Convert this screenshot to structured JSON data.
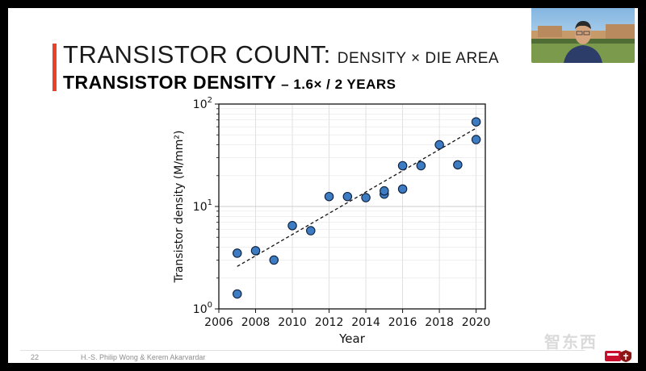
{
  "slide": {
    "title_main": "TRANSISTOR COUNT:",
    "title_sub": "DENSITY × DIE AREA",
    "heading_main": "TRANSISTOR DENSITY",
    "heading_sub": "– 1.6× / 2 YEARS"
  },
  "footer": {
    "page_number": "22",
    "authors": "H.-S. Philip Wong & Kerem Akarvardar"
  },
  "colors": {
    "accent": "#e8422b",
    "marker_fill": "#3d7bc2",
    "marker_edge": "#0d1f3a"
  },
  "chart_data": {
    "type": "scatter",
    "title": "",
    "xlabel": "Year",
    "ylabel": "Transistor density (M/mm²)",
    "yscale": "log",
    "xlim": [
      2006,
      2020.5
    ],
    "ylim": [
      1,
      100
    ],
    "grid": true,
    "x_ticks": [
      2006,
      2008,
      2010,
      2012,
      2014,
      2016,
      2018,
      2020
    ],
    "y_tick_labels": [
      {
        "base": "10",
        "exp": "0",
        "value": 1
      },
      {
        "base": "10",
        "exp": "1",
        "value": 10
      },
      {
        "base": "10",
        "exp": "2",
        "value": 100
      }
    ],
    "series": [
      {
        "name": "density",
        "x": [
          2007,
          2007,
          2008,
          2009,
          2010,
          2011,
          2012,
          2013,
          2014,
          2015,
          2015,
          2016,
          2016,
          2017,
          2018,
          2019,
          2020,
          2020
        ],
        "y": [
          1.4,
          3.5,
          3.7,
          3.0,
          6.5,
          5.8,
          12.5,
          12.5,
          12.2,
          13.2,
          14.2,
          14.8,
          25.0,
          25.0,
          40.0,
          25.5,
          45.0,
          67.0
        ]
      }
    ],
    "trendline": {
      "style": "dashed",
      "x": [
        2007,
        2020
      ],
      "y": [
        2.6,
        58.0
      ]
    }
  }
}
